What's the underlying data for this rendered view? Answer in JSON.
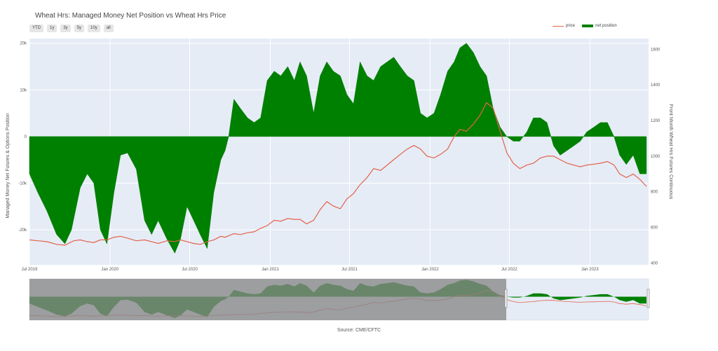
{
  "title": "Wheat Hrs: Managed Money Net Position vs Wheat Hrs Price",
  "range_buttons": [
    "YTD",
    "1y",
    "3y",
    "5y",
    "10y",
    "all"
  ],
  "legend": {
    "price": "price",
    "net_position": "net position"
  },
  "source": "Source: CME/CFTC",
  "colors": {
    "price": "#e4624a",
    "net_position": "#008000",
    "plot_bg": "#e5ecf6",
    "navigator_mask": "#888888"
  },
  "chart_data": {
    "type": "area",
    "title": "Wheat Hrs: Managed Money Net Position vs Wheat Hrs Price",
    "x_ticks": [
      "Jul 2019",
      "Jan 2020",
      "Jul 2020",
      "Jan 2021",
      "Jul 2021",
      "Jan 2022",
      "Jul 2022",
      "Jan 2023"
    ],
    "y_left": {
      "label": "Managed Money Net Futures & Options Position",
      "ticks": [
        "20k",
        "10k",
        "0",
        "-10k",
        "-20k"
      ],
      "range": [
        -27500,
        21000
      ]
    },
    "y_right": {
      "label": "Front Month Wheat Hrs Futures Continuous",
      "ticks": [
        "1600",
        "1400",
        "1200",
        "1000",
        "800",
        "600",
        "400"
      ],
      "range": [
        390,
        1660
      ]
    },
    "grid": true,
    "legend_position": "top-right",
    "series": [
      {
        "name": "net position",
        "axis": "left",
        "points": [
          [
            "2019-07-01",
            -8000
          ],
          [
            "2019-07-20",
            -12000
          ],
          [
            "2019-08-10",
            -16000
          ],
          [
            "2019-09-01",
            -21000
          ],
          [
            "2019-09-20",
            -23000
          ],
          [
            "2019-10-05",
            -20000
          ],
          [
            "2019-10-25",
            -11000
          ],
          [
            "2019-11-10",
            -8000
          ],
          [
            "2019-11-25",
            -10000
          ],
          [
            "2019-12-10",
            -20000
          ],
          [
            "2019-12-25",
            -23000
          ],
          [
            "2020-01-10",
            -12000
          ],
          [
            "2020-01-25",
            -4000
          ],
          [
            "2020-02-10",
            -3500
          ],
          [
            "2020-03-01",
            -7000
          ],
          [
            "2020-03-20",
            -18000
          ],
          [
            "2020-04-05",
            -21000
          ],
          [
            "2020-04-20",
            -18000
          ],
          [
            "2020-05-10",
            -22000
          ],
          [
            "2020-05-28",
            -25000
          ],
          [
            "2020-06-10",
            -22000
          ],
          [
            "2020-06-25",
            -15000
          ],
          [
            "2020-07-10",
            -18000
          ],
          [
            "2020-07-25",
            -21000
          ],
          [
            "2020-08-10",
            -24000
          ],
          [
            "2020-08-25",
            -12000
          ],
          [
            "2020-09-10",
            -5000
          ],
          [
            "2020-09-20",
            -3000
          ],
          [
            "2020-09-28",
            0
          ],
          [
            "2020-10-10",
            8000
          ],
          [
            "2020-10-25",
            6000
          ],
          [
            "2020-11-10",
            4000
          ],
          [
            "2020-11-25",
            3000
          ],
          [
            "2020-12-10",
            4000
          ],
          [
            "2020-12-25",
            12000
          ],
          [
            "2021-01-10",
            14000
          ],
          [
            "2021-01-25",
            13000
          ],
          [
            "2021-02-10",
            15000
          ],
          [
            "2021-02-25",
            12000
          ],
          [
            "2021-03-10",
            16000
          ],
          [
            "2021-03-25",
            13000
          ],
          [
            "2021-04-10",
            5000
          ],
          [
            "2021-04-25",
            13000
          ],
          [
            "2021-05-10",
            16000
          ],
          [
            "2021-05-25",
            14000
          ],
          [
            "2021-06-10",
            13000
          ],
          [
            "2021-06-25",
            9000
          ],
          [
            "2021-07-10",
            7000
          ],
          [
            "2021-07-25",
            16000
          ],
          [
            "2021-08-10",
            13000
          ],
          [
            "2021-08-25",
            12000
          ],
          [
            "2021-09-10",
            15000
          ],
          [
            "2021-09-25",
            16000
          ],
          [
            "2021-10-10",
            17000
          ],
          [
            "2021-10-25",
            15000
          ],
          [
            "2021-11-10",
            13000
          ],
          [
            "2021-11-25",
            12000
          ],
          [
            "2021-12-10",
            5000
          ],
          [
            "2021-12-25",
            4000
          ],
          [
            "2022-01-10",
            5000
          ],
          [
            "2022-01-25",
            9000
          ],
          [
            "2022-02-10",
            14000
          ],
          [
            "2022-02-25",
            16000
          ],
          [
            "2022-03-10",
            19000
          ],
          [
            "2022-03-25",
            20000
          ],
          [
            "2022-04-10",
            18000
          ],
          [
            "2022-04-25",
            15000
          ],
          [
            "2022-05-10",
            13000
          ],
          [
            "2022-05-25",
            6000
          ],
          [
            "2022-06-10",
            2000
          ],
          [
            "2022-06-25",
            0
          ],
          [
            "2022-07-10",
            -1000
          ],
          [
            "2022-07-25",
            -1000
          ],
          [
            "2022-08-10",
            1000
          ],
          [
            "2022-08-25",
            4000
          ],
          [
            "2022-09-10",
            4000
          ],
          [
            "2022-09-25",
            3000
          ],
          [
            "2022-10-10",
            -2000
          ],
          [
            "2022-10-25",
            -4000
          ],
          [
            "2022-11-10",
            -3000
          ],
          [
            "2022-11-25",
            -2000
          ],
          [
            "2022-12-10",
            -1000
          ],
          [
            "2022-12-25",
            1000
          ],
          [
            "2023-01-10",
            2000
          ],
          [
            "2023-01-25",
            3000
          ],
          [
            "2023-02-10",
            3000
          ],
          [
            "2023-02-25",
            0
          ],
          [
            "2023-03-10",
            -4000
          ],
          [
            "2023-03-25",
            -6000
          ],
          [
            "2023-04-10",
            -4000
          ],
          [
            "2023-04-25",
            -8000
          ],
          [
            "2023-05-10",
            -8000
          ]
        ]
      },
      {
        "name": "price",
        "axis": "right",
        "points": [
          [
            "2019-07-01",
            530
          ],
          [
            "2019-07-20",
            525
          ],
          [
            "2019-08-10",
            520
          ],
          [
            "2019-09-01",
            505
          ],
          [
            "2019-09-20",
            500
          ],
          [
            "2019-10-10",
            525
          ],
          [
            "2019-10-25",
            530
          ],
          [
            "2019-11-10",
            520
          ],
          [
            "2019-11-25",
            515
          ],
          [
            "2019-12-10",
            530
          ],
          [
            "2019-12-25",
            530
          ],
          [
            "2020-01-10",
            545
          ],
          [
            "2020-01-25",
            550
          ],
          [
            "2020-02-10",
            540
          ],
          [
            "2020-03-01",
            525
          ],
          [
            "2020-03-20",
            530
          ],
          [
            "2020-04-05",
            520
          ],
          [
            "2020-04-20",
            510
          ],
          [
            "2020-05-10",
            525
          ],
          [
            "2020-05-28",
            520
          ],
          [
            "2020-06-10",
            530
          ],
          [
            "2020-06-25",
            520
          ],
          [
            "2020-07-10",
            510
          ],
          [
            "2020-07-25",
            505
          ],
          [
            "2020-08-10",
            520
          ],
          [
            "2020-08-25",
            530
          ],
          [
            "2020-09-10",
            550
          ],
          [
            "2020-09-20",
            545
          ],
          [
            "2020-10-10",
            565
          ],
          [
            "2020-10-25",
            560
          ],
          [
            "2020-11-10",
            570
          ],
          [
            "2020-11-25",
            575
          ],
          [
            "2020-12-10",
            595
          ],
          [
            "2020-12-25",
            610
          ],
          [
            "2021-01-10",
            640
          ],
          [
            "2021-01-25",
            635
          ],
          [
            "2021-02-10",
            650
          ],
          [
            "2021-02-25",
            645
          ],
          [
            "2021-03-10",
            645
          ],
          [
            "2021-03-25",
            620
          ],
          [
            "2021-04-10",
            640
          ],
          [
            "2021-04-25",
            700
          ],
          [
            "2021-05-10",
            745
          ],
          [
            "2021-05-25",
            720
          ],
          [
            "2021-06-10",
            705
          ],
          [
            "2021-06-25",
            760
          ],
          [
            "2021-07-10",
            790
          ],
          [
            "2021-07-25",
            840
          ],
          [
            "2021-08-10",
            880
          ],
          [
            "2021-08-25",
            930
          ],
          [
            "2021-09-10",
            920
          ],
          [
            "2021-09-25",
            950
          ],
          [
            "2021-10-10",
            980
          ],
          [
            "2021-10-25",
            1010
          ],
          [
            "2021-11-10",
            1040
          ],
          [
            "2021-11-25",
            1060
          ],
          [
            "2021-12-10",
            1040
          ],
          [
            "2021-12-25",
            1000
          ],
          [
            "2022-01-10",
            990
          ],
          [
            "2022-01-25",
            1010
          ],
          [
            "2022-02-10",
            1040
          ],
          [
            "2022-02-25",
            1110
          ],
          [
            "2022-03-10",
            1150
          ],
          [
            "2022-03-25",
            1140
          ],
          [
            "2022-04-10",
            1180
          ],
          [
            "2022-04-25",
            1230
          ],
          [
            "2022-05-10",
            1300
          ],
          [
            "2022-05-25",
            1270
          ],
          [
            "2022-06-10",
            1140
          ],
          [
            "2022-06-25",
            1020
          ],
          [
            "2022-07-10",
            960
          ],
          [
            "2022-07-25",
            930
          ],
          [
            "2022-08-10",
            950
          ],
          [
            "2022-08-25",
            960
          ],
          [
            "2022-09-10",
            990
          ],
          [
            "2022-09-25",
            1000
          ],
          [
            "2022-10-10",
            1000
          ],
          [
            "2022-10-25",
            980
          ],
          [
            "2022-11-10",
            960
          ],
          [
            "2022-11-25",
            950
          ],
          [
            "2022-12-10",
            940
          ],
          [
            "2022-12-25",
            950
          ],
          [
            "2023-01-10",
            955
          ],
          [
            "2023-01-25",
            960
          ],
          [
            "2023-02-10",
            970
          ],
          [
            "2023-02-25",
            950
          ],
          [
            "2023-03-10",
            900
          ],
          [
            "2023-03-25",
            880
          ],
          [
            "2023-04-10",
            900
          ],
          [
            "2023-04-25",
            870
          ],
          [
            "2023-05-10",
            830
          ]
        ]
      }
    ]
  }
}
